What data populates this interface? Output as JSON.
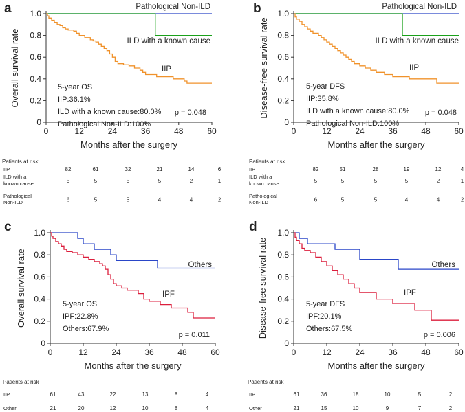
{
  "figure": {
    "xlabel": "Months after the surgery",
    "xticks": [
      0,
      12,
      24,
      36,
      48,
      60
    ],
    "yticks": [
      "0",
      "0.2",
      "0.4",
      "0.6",
      "0.8",
      "1.0"
    ],
    "risk_title": "Patients at risk",
    "risk_times": [
      0,
      12,
      24,
      36,
      48,
      60
    ]
  },
  "chart_data": [
    {
      "id": "a",
      "panel_label": "a",
      "type": "line",
      "title": "",
      "xlabel": "Months after the surgery",
      "ylabel": "Overall survival rate",
      "xlim": [
        0,
        60
      ],
      "ylim": [
        0,
        1
      ],
      "series": [
        {
          "name": "Pathological Non-ILD",
          "label": "Pathological Non-ILD",
          "color": "#2a46c8",
          "points": [
            [
              0,
              1.0
            ],
            [
              60,
              1.0
            ]
          ]
        },
        {
          "name": "ILD with a known cause",
          "label": "ILD with a known cause",
          "color": "#1aa01a",
          "points": [
            [
              0,
              1.0
            ],
            [
              39.5,
              1.0
            ],
            [
              39.5,
              0.8
            ],
            [
              60,
              0.8
            ]
          ]
        },
        {
          "name": "IIP",
          "label": "IIP",
          "color": "#f0922b",
          "points": [
            [
              0,
              1.0
            ],
            [
              0.5,
              0.98
            ],
            [
              1,
              0.96
            ],
            [
              2,
              0.94
            ],
            [
              3,
              0.92
            ],
            [
              4,
              0.9
            ],
            [
              5,
              0.89
            ],
            [
              6,
              0.87
            ],
            [
              7,
              0.86
            ],
            [
              8,
              0.85
            ],
            [
              10,
              0.84
            ],
            [
              11,
              0.82
            ],
            [
              12,
              0.8
            ],
            [
              14,
              0.78
            ],
            [
              16,
              0.76
            ],
            [
              17,
              0.75
            ],
            [
              18,
              0.74
            ],
            [
              19,
              0.72
            ],
            [
              20,
              0.7
            ],
            [
              21,
              0.68
            ],
            [
              22,
              0.66
            ],
            [
              23,
              0.63
            ],
            [
              24,
              0.6
            ],
            [
              25,
              0.56
            ],
            [
              26,
              0.54
            ],
            [
              28,
              0.53
            ],
            [
              30,
              0.52
            ],
            [
              32,
              0.5
            ],
            [
              34,
              0.48
            ],
            [
              35,
              0.46
            ],
            [
              36,
              0.44
            ],
            [
              40,
              0.42
            ],
            [
              45,
              0.42
            ],
            [
              46,
              0.4
            ],
            [
              50,
              0.38
            ],
            [
              51,
              0.36
            ],
            [
              60,
              0.36
            ]
          ]
        }
      ],
      "annotations": [
        "5-year OS",
        "IIP:36.1%",
        "ILD with a known cause:80.0%",
        "Pathological Non-ILD:100%"
      ],
      "pvalue": "p = 0.048",
      "risk_table": [
        {
          "label": [
            "IIP"
          ],
          "values": [
            82,
            61,
            32,
            21,
            14,
            6
          ]
        },
        {
          "label": [
            "ILD with a",
            "known cause"
          ],
          "values": [
            5,
            5,
            5,
            5,
            2,
            1
          ]
        },
        {
          "label": [
            "Pathological",
            "Non-ILD"
          ],
          "values": [
            6,
            5,
            5,
            4,
            4,
            2
          ]
        }
      ]
    },
    {
      "id": "b",
      "panel_label": "b",
      "type": "line",
      "title": "",
      "xlabel": "Months after the surgery",
      "ylabel": "Disease-free survival rate",
      "xlim": [
        0,
        60
      ],
      "ylim": [
        0,
        1
      ],
      "series": [
        {
          "name": "Pathological Non-ILD",
          "label": "Pathological Non-ILD",
          "color": "#2a46c8",
          "points": [
            [
              0,
              1.0
            ],
            [
              60,
              1.0
            ]
          ]
        },
        {
          "name": "ILD with a known cause",
          "label": "ILD with a known cause",
          "color": "#1aa01a",
          "points": [
            [
              0,
              1.0
            ],
            [
              39.5,
              1.0
            ],
            [
              39.5,
              0.8
            ],
            [
              60,
              0.8
            ]
          ]
        },
        {
          "name": "IIP",
          "label": "IIP",
          "color": "#f0922b",
          "points": [
            [
              0,
              1.0
            ],
            [
              0.5,
              0.97
            ],
            [
              1,
              0.95
            ],
            [
              2,
              0.93
            ],
            [
              3,
              0.9
            ],
            [
              4,
              0.88
            ],
            [
              5,
              0.86
            ],
            [
              6,
              0.84
            ],
            [
              7,
              0.82
            ],
            [
              9,
              0.8
            ],
            [
              10,
              0.78
            ],
            [
              11,
              0.76
            ],
            [
              12,
              0.74
            ],
            [
              13,
              0.72
            ],
            [
              14,
              0.7
            ],
            [
              15,
              0.68
            ],
            [
              16,
              0.66
            ],
            [
              17,
              0.64
            ],
            [
              18,
              0.62
            ],
            [
              19,
              0.6
            ],
            [
              20,
              0.58
            ],
            [
              21,
              0.56
            ],
            [
              22,
              0.54
            ],
            [
              24,
              0.52
            ],
            [
              26,
              0.5
            ],
            [
              28,
              0.48
            ],
            [
              30,
              0.46
            ],
            [
              33,
              0.44
            ],
            [
              36,
              0.42
            ],
            [
              41,
              0.42
            ],
            [
              42,
              0.4
            ],
            [
              52,
              0.4
            ],
            [
              52,
              0.36
            ],
            [
              60,
              0.36
            ]
          ]
        }
      ],
      "annotations": [
        "5-year DFS",
        "IIP:35.8%",
        "ILD with a known cause:80.0%",
        "Pathological Non-ILD:100%"
      ],
      "pvalue": "p = 0.048",
      "risk_table": [
        {
          "label": [
            "IIP"
          ],
          "values": [
            82,
            51,
            28,
            19,
            12,
            4
          ]
        },
        {
          "label": [
            "ILD with a",
            "known cause"
          ],
          "values": [
            5,
            5,
            5,
            5,
            2,
            1
          ]
        },
        {
          "label": [
            "Pathological",
            "Non-ILD"
          ],
          "values": [
            6,
            5,
            5,
            4,
            4,
            2
          ]
        }
      ]
    },
    {
      "id": "c",
      "panel_label": "c",
      "type": "line",
      "title": "",
      "xlabel": "Months after the surgery",
      "ylabel": "Overall survival rate",
      "xlim": [
        0,
        60
      ],
      "ylim": [
        0,
        1
      ],
      "series": [
        {
          "name": "Others",
          "label": "Others",
          "color": "#2a46c8",
          "points": [
            [
              0,
              1.0
            ],
            [
              10,
              1.0
            ],
            [
              10,
              0.95
            ],
            [
              12,
              0.95
            ],
            [
              12,
              0.9
            ],
            [
              16,
              0.9
            ],
            [
              16,
              0.85
            ],
            [
              22,
              0.85
            ],
            [
              22,
              0.8
            ],
            [
              24,
              0.8
            ],
            [
              24,
              0.75
            ],
            [
              39,
              0.75
            ],
            [
              39,
              0.68
            ],
            [
              60,
              0.68
            ]
          ]
        },
        {
          "name": "IPF",
          "label": "IPF",
          "color": "#dc1e3c",
          "points": [
            [
              0,
              1.0
            ],
            [
              0.5,
              0.97
            ],
            [
              1,
              0.95
            ],
            [
              2,
              0.92
            ],
            [
              3,
              0.9
            ],
            [
              4,
              0.88
            ],
            [
              5,
              0.85
            ],
            [
              6,
              0.83
            ],
            [
              8,
              0.82
            ],
            [
              10,
              0.8
            ],
            [
              12,
              0.78
            ],
            [
              14,
              0.76
            ],
            [
              16,
              0.74
            ],
            [
              18,
              0.72
            ],
            [
              19,
              0.7
            ],
            [
              20,
              0.67
            ],
            [
              21,
              0.62
            ],
            [
              22,
              0.58
            ],
            [
              23,
              0.54
            ],
            [
              24,
              0.52
            ],
            [
              26,
              0.5
            ],
            [
              28,
              0.48
            ],
            [
              32,
              0.45
            ],
            [
              34,
              0.4
            ],
            [
              36,
              0.38
            ],
            [
              40,
              0.35
            ],
            [
              44,
              0.32
            ],
            [
              50,
              0.28
            ],
            [
              52,
              0.23
            ],
            [
              60,
              0.23
            ]
          ]
        }
      ],
      "annotations": [
        "5-year OS",
        "IPF:22.8%",
        "Others:67.9%"
      ],
      "pvalue": "p = 0.011",
      "risk_table": [
        {
          "label": [
            "IIP"
          ],
          "values": [
            61,
            43,
            22,
            13,
            8,
            4
          ]
        },
        {
          "label": [
            "Other"
          ],
          "values": [
            21,
            20,
            12,
            10,
            8,
            4
          ]
        }
      ]
    },
    {
      "id": "d",
      "panel_label": "d",
      "type": "line",
      "title": "",
      "xlabel": "Months after the surgery",
      "ylabel": "Disease-free survival rate",
      "xlim": [
        0,
        60
      ],
      "ylim": [
        0,
        1
      ],
      "series": [
        {
          "name": "Others",
          "label": "Others",
          "color": "#2a46c8",
          "points": [
            [
              0,
              1.0
            ],
            [
              2,
              1.0
            ],
            [
              2,
              0.95
            ],
            [
              5,
              0.95
            ],
            [
              5,
              0.9
            ],
            [
              15,
              0.9
            ],
            [
              15,
              0.85
            ],
            [
              24,
              0.85
            ],
            [
              24,
              0.76
            ],
            [
              38,
              0.76
            ],
            [
              38,
              0.67
            ],
            [
              60,
              0.67
            ]
          ]
        },
        {
          "name": "IPF",
          "label": "IPF",
          "color": "#dc1e3c",
          "points": [
            [
              0,
              1.0
            ],
            [
              0.5,
              0.96
            ],
            [
              1,
              0.93
            ],
            [
              2,
              0.9
            ],
            [
              3,
              0.86
            ],
            [
              4,
              0.84
            ],
            [
              6,
              0.82
            ],
            [
              8,
              0.78
            ],
            [
              10,
              0.74
            ],
            [
              12,
              0.7
            ],
            [
              14,
              0.66
            ],
            [
              16,
              0.62
            ],
            [
              18,
              0.58
            ],
            [
              20,
              0.54
            ],
            [
              22,
              0.5
            ],
            [
              24,
              0.46
            ],
            [
              28,
              0.46
            ],
            [
              30,
              0.4
            ],
            [
              36,
              0.36
            ],
            [
              44,
              0.36
            ],
            [
              44,
              0.3
            ],
            [
              50,
              0.3
            ],
            [
              50,
              0.21
            ],
            [
              60,
              0.21
            ]
          ]
        }
      ],
      "annotations": [
        "5-year DFS",
        "IPF:20.1%",
        "Others:67.5%"
      ],
      "pvalue": "p = 0.006",
      "risk_table": [
        {
          "label": [
            "IIP"
          ],
          "values": [
            61,
            36,
            18,
            10,
            5,
            2
          ]
        },
        {
          "label": [
            "Other"
          ],
          "values": [
            21,
            15,
            10,
            9,
            7,
            2
          ]
        }
      ]
    }
  ]
}
